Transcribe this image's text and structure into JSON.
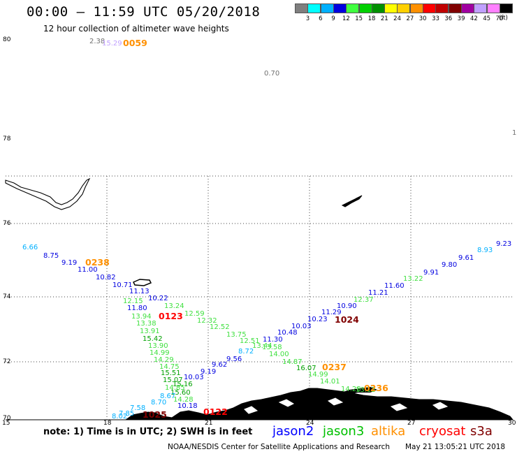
{
  "header": {
    "title": "00:00 – 11:59 UTC 05/20/2018",
    "subtitle": "12 hour collection of altimeter wave heights"
  },
  "legend": {
    "unit": "(ft)",
    "bins": [
      {
        "label": "3",
        "color": "#7f7f7f"
      },
      {
        "label": "6",
        "color": "#00ffff"
      },
      {
        "label": "9",
        "color": "#00b0ff"
      },
      {
        "label": "12",
        "color": "#0000e0"
      },
      {
        "label": "15",
        "color": "#40ff40"
      },
      {
        "label": "18",
        "color": "#00d000"
      },
      {
        "label": "21",
        "color": "#009000"
      },
      {
        "label": "24",
        "color": "#ffff00"
      },
      {
        "label": "27",
        "color": "#ffd000"
      },
      {
        "label": "30",
        "color": "#ff9000"
      },
      {
        "label": "33",
        "color": "#ff0000"
      },
      {
        "label": "36",
        "color": "#c00000"
      },
      {
        "label": "39",
        "color": "#800000"
      },
      {
        "label": "42",
        "color": "#a000a0"
      },
      {
        "label": "45",
        "color": "#c0a0ff"
      },
      {
        "label": "70",
        "color": "#ff80ff"
      },
      {
        "label": "",
        "color": "#000000"
      }
    ]
  },
  "axes": {
    "lat_labels": [
      "80",
      "78",
      "76",
      "74",
      "72",
      "70"
    ],
    "lon_labels": [
      "15",
      "18",
      "21",
      "24",
      "27",
      "30"
    ]
  },
  "observations": [
    {
      "v": "2.38",
      "c": "#707070"
    },
    {
      "v": "15.29",
      "c": "#c0a0ff"
    },
    {
      "v": "0.70",
      "c": "#707070"
    },
    {
      "v": "1",
      "c": "#707070"
    },
    {
      "v": "6.66",
      "c": "#00b0ff"
    },
    {
      "v": "8.75",
      "c": "#0000e0"
    },
    {
      "v": "9.19",
      "c": "#0000e0"
    },
    {
      "v": "11.00",
      "c": "#0000e0"
    },
    {
      "v": "10.82",
      "c": "#0000e0"
    },
    {
      "v": "10.71",
      "c": "#0000e0"
    },
    {
      "v": "11.13",
      "c": "#0000e0"
    },
    {
      "v": "10.22",
      "c": "#0000e0"
    },
    {
      "v": "12.15",
      "c": "#40e040"
    },
    {
      "v": "11.80",
      "c": "#0000e0"
    },
    {
      "v": "13.24",
      "c": "#40e040"
    },
    {
      "v": "13.94",
      "c": "#40e040"
    },
    {
      "v": "12.59",
      "c": "#40e040"
    },
    {
      "v": "13.38",
      "c": "#40e040"
    },
    {
      "v": "12.32",
      "c": "#40e040"
    },
    {
      "v": "13.91",
      "c": "#40e040"
    },
    {
      "v": "12.52",
      "c": "#40e040"
    },
    {
      "v": "15.42",
      "c": "#00a000"
    },
    {
      "v": "13.75",
      "c": "#40e040"
    },
    {
      "v": "13.90",
      "c": "#40e040"
    },
    {
      "v": "12.51",
      "c": "#40e040"
    },
    {
      "v": "14.99",
      "c": "#40e040"
    },
    {
      "v": "13.44",
      "c": "#40e040"
    },
    {
      "v": "14.29",
      "c": "#40e040"
    },
    {
      "v": "13.58",
      "c": "#40e040"
    },
    {
      "v": "14.75",
      "c": "#40e040"
    },
    {
      "v": "15.51",
      "c": "#00a000"
    },
    {
      "v": "15.07",
      "c": "#00a000"
    },
    {
      "v": "15.16",
      "c": "#00a000"
    },
    {
      "v": "14.85",
      "c": "#40e040"
    },
    {
      "v": "15.60",
      "c": "#00a000"
    },
    {
      "v": "14.28",
      "c": "#40e040"
    },
    {
      "v": "14.00",
      "c": "#40e040"
    },
    {
      "v": "14.87",
      "c": "#40e040"
    },
    {
      "v": "16.07",
      "c": "#00a000"
    },
    {
      "v": "14.99",
      "c": "#40e040"
    },
    {
      "v": "14.01",
      "c": "#40e040"
    },
    {
      "v": "14.28",
      "c": "#40e040"
    },
    {
      "v": "13.12",
      "c": "#40e040"
    },
    {
      "v": "12.37",
      "c": "#40e040"
    },
    {
      "v": "13.22",
      "c": "#40e040"
    },
    {
      "v": "8.72",
      "c": "#00b0ff"
    },
    {
      "v": "9.56",
      "c": "#0000e0"
    },
    {
      "v": "9.62",
      "c": "#0000e0"
    },
    {
      "v": "9.19",
      "c": "#0000e0"
    },
    {
      "v": "10.03",
      "c": "#0000e0"
    },
    {
      "v": "8.67",
      "c": "#00b0ff"
    },
    {
      "v": "8.70",
      "c": "#00b0ff"
    },
    {
      "v": "7.58",
      "c": "#00b0ff"
    },
    {
      "v": "7.85",
      "c": "#00b0ff"
    },
    {
      "v": "8.02",
      "c": "#00b0ff"
    },
    {
      "v": "10.18",
      "c": "#0000e0"
    },
    {
      "v": "11.30",
      "c": "#0000e0"
    },
    {
      "v": "10.48",
      "c": "#0000e0"
    },
    {
      "v": "10.03",
      "c": "#0000e0"
    },
    {
      "v": "10.23",
      "c": "#0000e0"
    },
    {
      "v": "11.29",
      "c": "#0000e0"
    },
    {
      "v": "10.90",
      "c": "#0000e0"
    },
    {
      "v": "11.21",
      "c": "#0000e0"
    },
    {
      "v": "11.60",
      "c": "#0000e0"
    },
    {
      "v": "9.91",
      "c": "#0000e0"
    },
    {
      "v": "9.80",
      "c": "#0000e0"
    },
    {
      "v": "9.61",
      "c": "#0000e0"
    },
    {
      "v": "8.93",
      "c": "#00b0ff"
    },
    {
      "v": "9.23",
      "c": "#0000e0"
    }
  ],
  "passes": [
    {
      "v": "0059",
      "c": "#ff9000"
    },
    {
      "v": "0238",
      "c": "#ff9000"
    },
    {
      "v": "0123",
      "c": "#ff0000"
    },
    {
      "v": "1024",
      "c": "#800000"
    },
    {
      "v": "0237",
      "c": "#ff9000"
    },
    {
      "v": "0236",
      "c": "#ff9000"
    },
    {
      "v": "0122",
      "c": "#ff0000"
    },
    {
      "v": "1025",
      "c": "#800000"
    }
  ],
  "footer": {
    "note": "note: 1) Time is in UTC; 2) SWH is in feet",
    "satellites": [
      {
        "name": "jason2",
        "color": "#0000ff"
      },
      {
        "name": "jason3",
        "color": "#00c000"
      },
      {
        "name": "altika",
        "color": "#ff9000"
      },
      {
        "name": "cryosat",
        "color": "#ff0000"
      },
      {
        "name": "s3a",
        "color": "#800000"
      }
    ],
    "credit": "NOAA/NESDIS Center for Satellite Applications and Research",
    "timestamp": "May 21 13:05:21 UTC 2018"
  }
}
